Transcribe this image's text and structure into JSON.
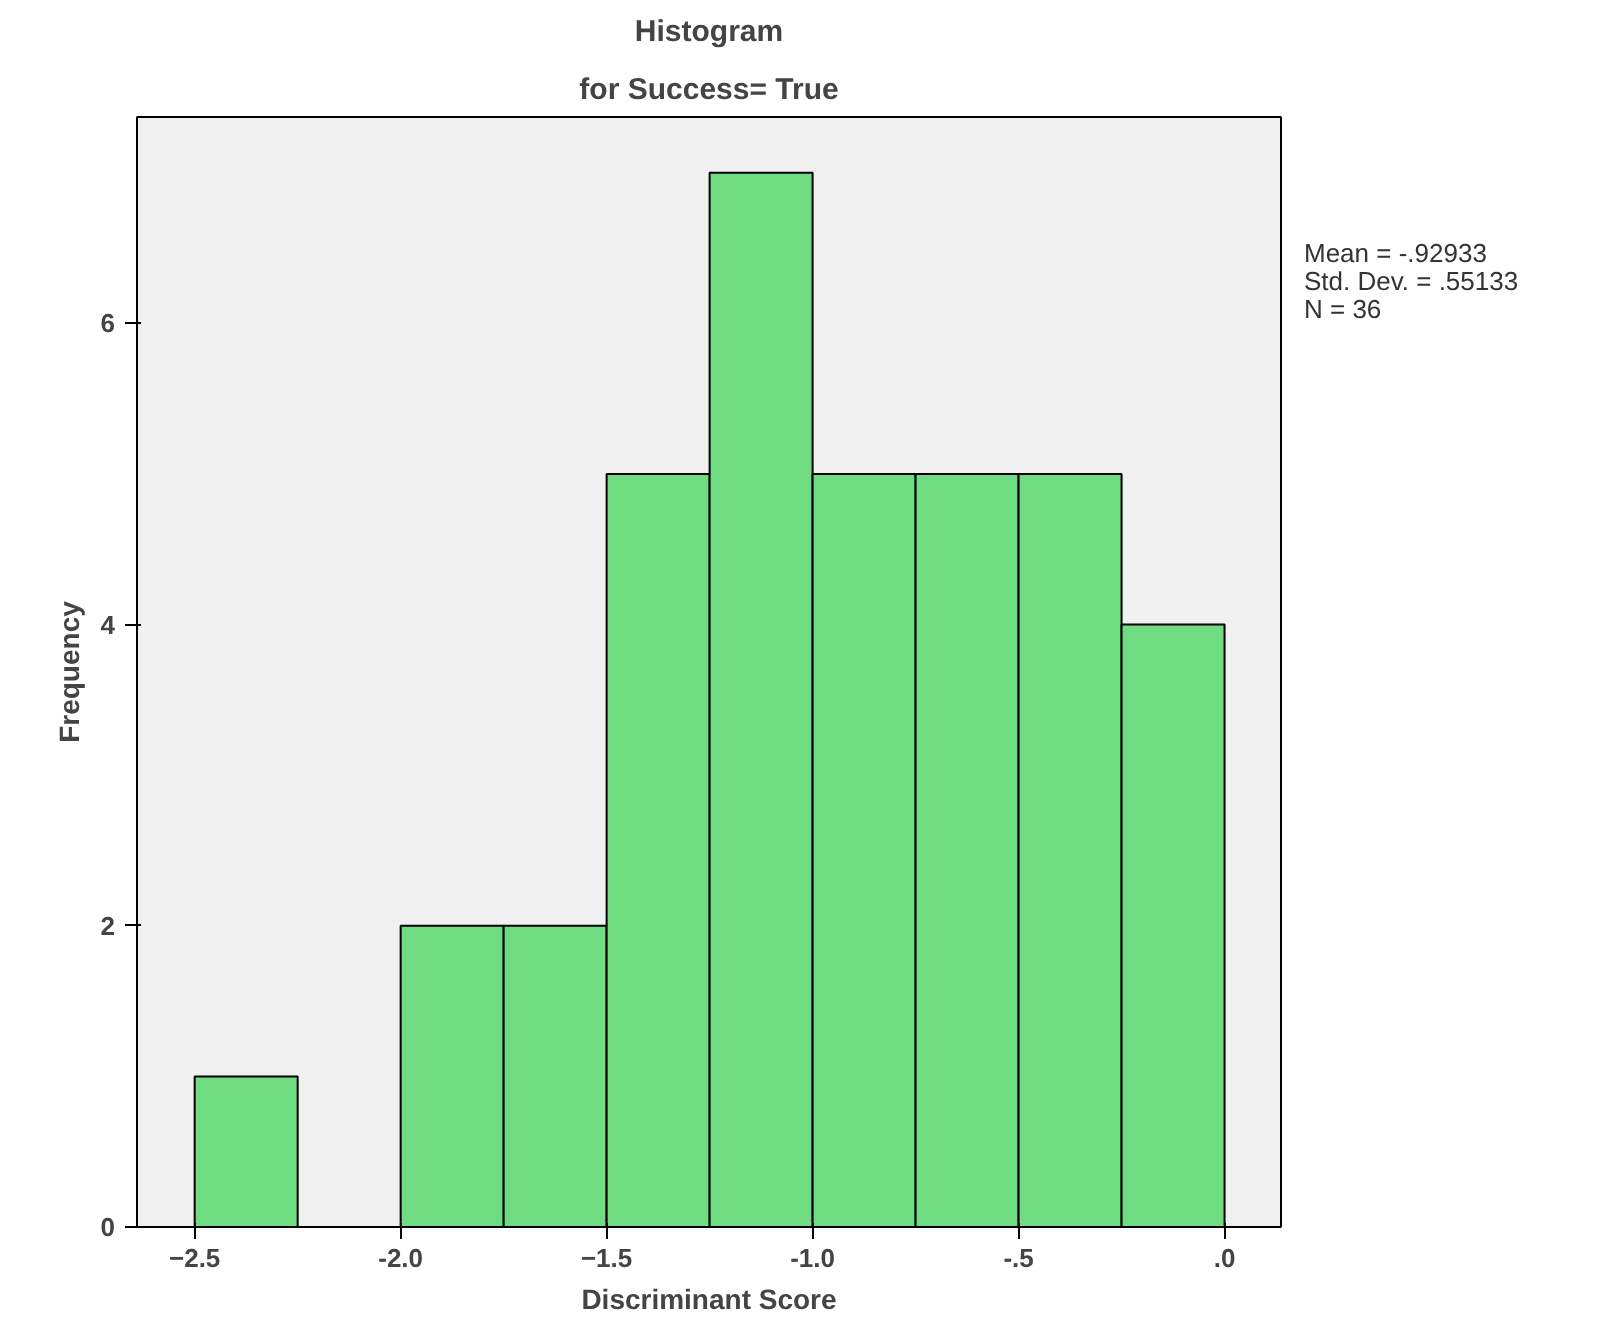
{
  "chart_data": {
    "type": "histogram",
    "title": "Histogram",
    "subtitle": "for Success= True",
    "xlabel": "Discriminant Score",
    "ylabel": "Frequency",
    "bins": [
      -2.5,
      -2.25,
      -2.0,
      -1.75,
      -1.5,
      -1.25,
      -1.0,
      -0.75,
      -0.5,
      -0.25,
      0.0
    ],
    "values": [
      1,
      0,
      2,
      2,
      5,
      7,
      5,
      5,
      5,
      4
    ],
    "color": "#6fdc82",
    "xlim": [
      -2.64,
      0.137
    ],
    "ylim": [
      0,
      7.37
    ],
    "xticks": [
      -2.5,
      {
        "value": -2.0,
        "label": "-2.0"
      },
      -1.5,
      {
        "value": -1.0,
        "label": "-1.0"
      },
      {
        "value": -0.5,
        "label": "-.5"
      },
      {
        "value": 0.0,
        "label": ".0"
      }
    ],
    "yticks": [
      0,
      2,
      4,
      6
    ],
    "grid": false,
    "annotations": [
      "Mean = -.92933",
      "Std. Dev. = .55133",
      "N = 36"
    ]
  }
}
